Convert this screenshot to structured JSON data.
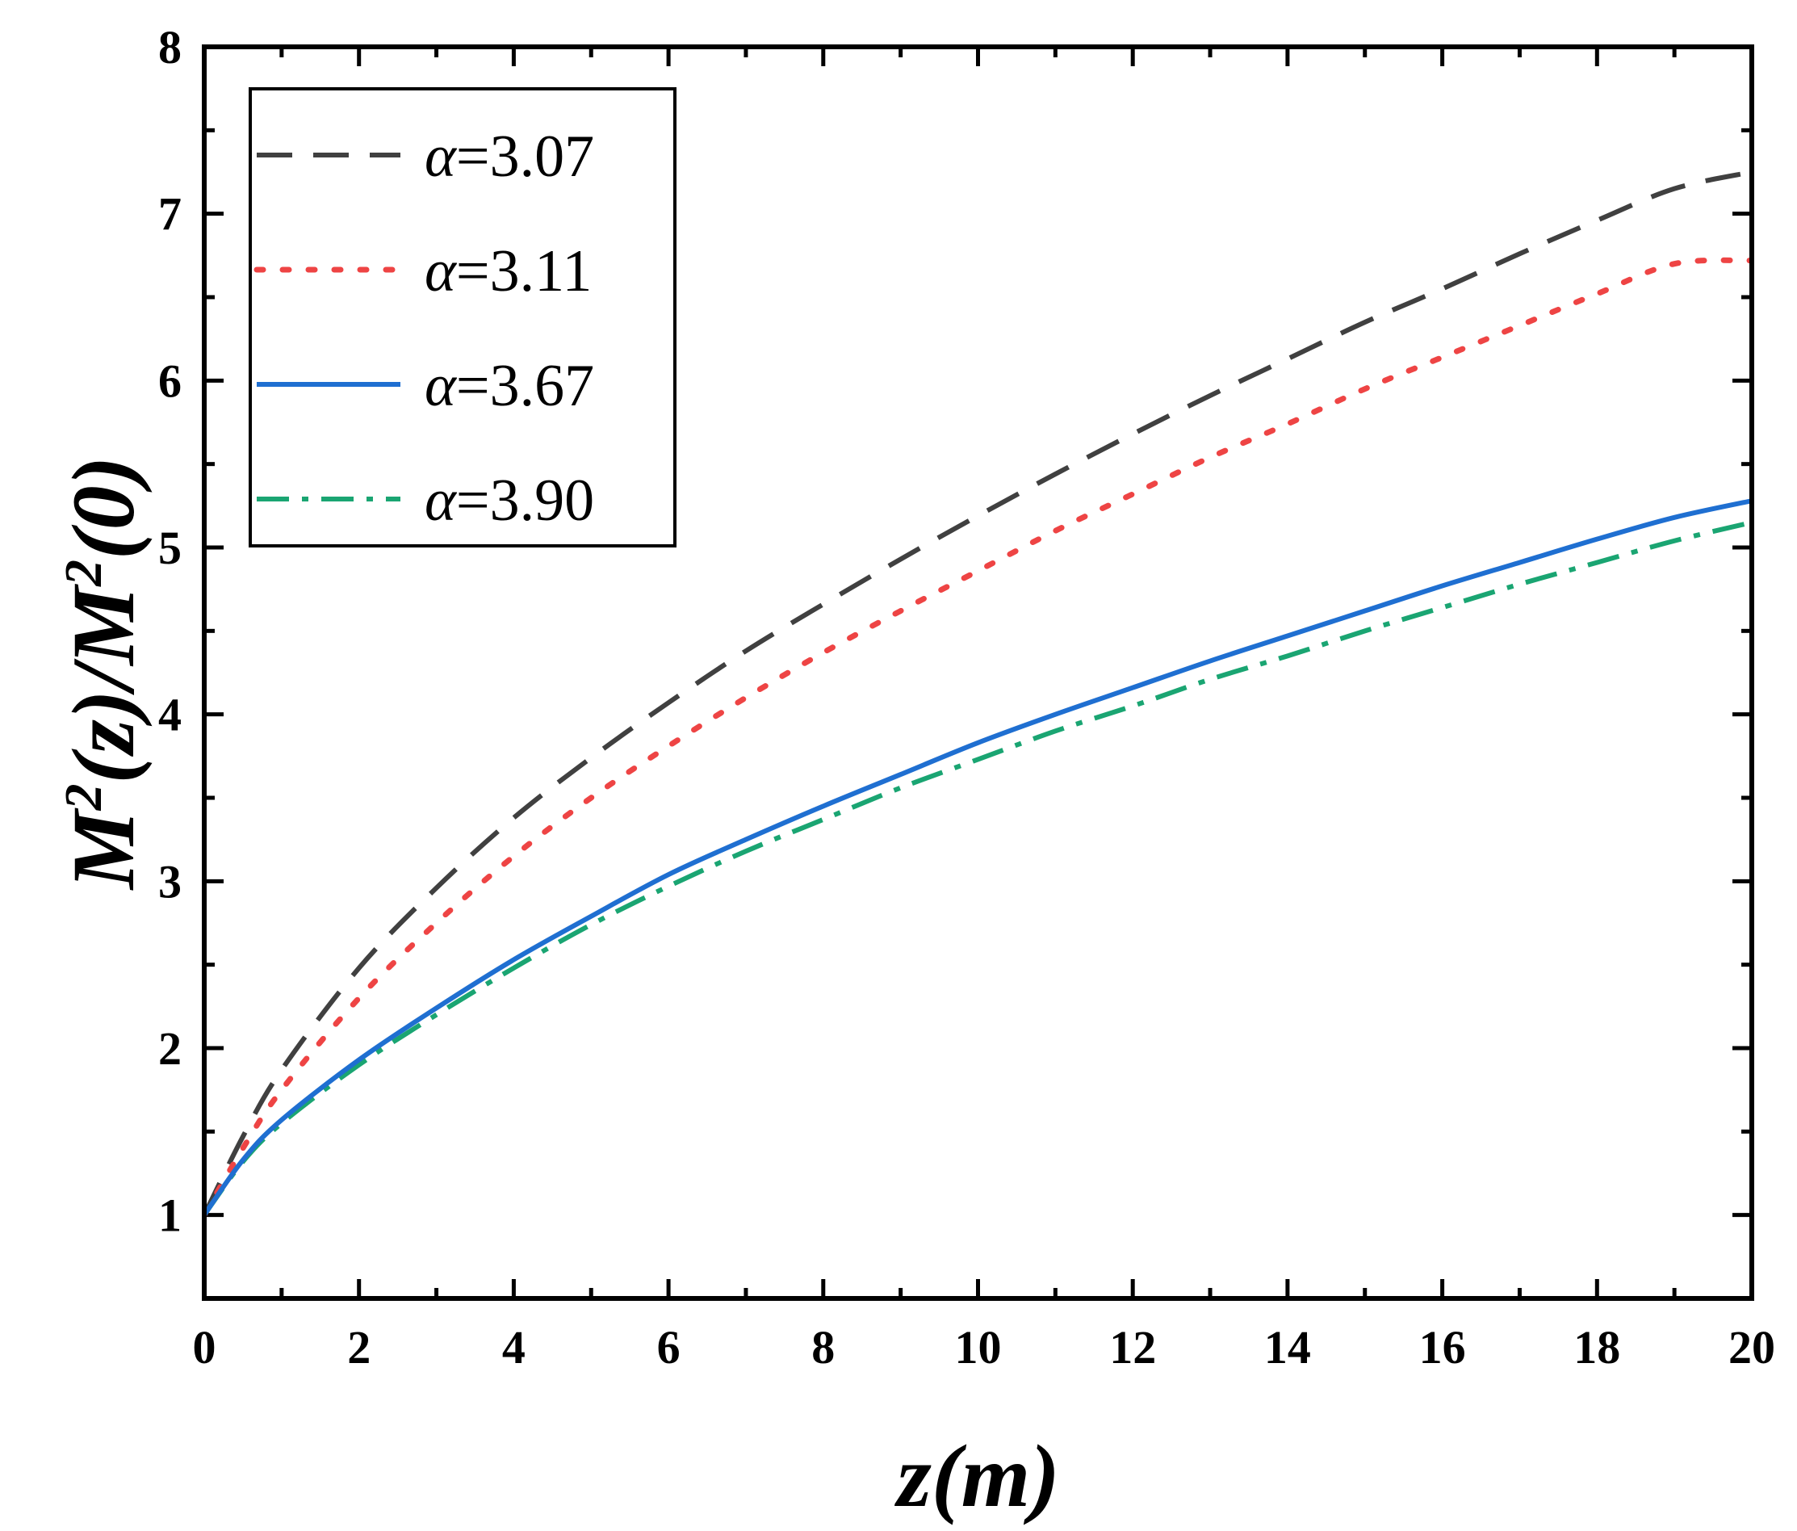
{
  "chart_data": {
    "type": "line",
    "title": "",
    "xlabel": "z(m)",
    "ylabel": "M²(z)/M²(0)",
    "ylabel_parts": {
      "m1": "M",
      "sup1": "2",
      "mid": "(z)/",
      "m2": "M",
      "sup2": "2",
      "end": "(0)"
    },
    "xlim": [
      0,
      20
    ],
    "ylim": [
      0.5,
      8
    ],
    "xticks": [
      0,
      2,
      4,
      6,
      8,
      10,
      12,
      14,
      16,
      18,
      20
    ],
    "yticks": [
      1,
      2,
      3,
      4,
      5,
      6,
      7,
      8
    ],
    "legend_position": "top-left",
    "series": [
      {
        "name": "α=3.07",
        "alpha_symbol": "α",
        "alpha_value": "=3.07",
        "color": "#404040",
        "style": "dashed",
        "x": [
          0,
          0.5,
          1,
          2,
          3,
          4,
          5,
          6,
          7,
          8,
          9,
          10,
          11,
          12,
          13,
          14,
          15,
          16,
          17,
          18,
          19,
          20
        ],
        "y": [
          1.0,
          1.47,
          1.87,
          2.48,
          2.96,
          3.38,
          3.74,
          4.07,
          4.38,
          4.66,
          4.93,
          5.19,
          5.44,
          5.68,
          5.91,
          6.13,
          6.35,
          6.55,
          6.76,
          6.96,
          7.15,
          7.25
        ]
      },
      {
        "name": "α=3.11",
        "alpha_symbol": "α",
        "alpha_value": "=3.11",
        "color": "#ee4444",
        "style": "dotted",
        "x": [
          0,
          0.5,
          1,
          2,
          3,
          4,
          5,
          6,
          7,
          8,
          9,
          10,
          11,
          12,
          13,
          14,
          15,
          16,
          17,
          18,
          19,
          20
        ],
        "y": [
          1.0,
          1.4,
          1.75,
          2.3,
          2.75,
          3.15,
          3.5,
          3.81,
          4.1,
          4.37,
          4.62,
          4.86,
          5.1,
          5.32,
          5.54,
          5.74,
          5.95,
          6.14,
          6.33,
          6.52,
          6.7,
          6.72
        ]
      },
      {
        "name": "α=3.67",
        "alpha_symbol": "α",
        "alpha_value": "=3.67",
        "color": "#1f6fd1",
        "style": "solid",
        "x": [
          0,
          0.5,
          1,
          2,
          3,
          4,
          5,
          6,
          7,
          8,
          9,
          10,
          11,
          12,
          13,
          14,
          15,
          16,
          17,
          18,
          19,
          20
        ],
        "y": [
          1.0,
          1.33,
          1.57,
          1.93,
          2.24,
          2.53,
          2.79,
          3.04,
          3.25,
          3.45,
          3.64,
          3.83,
          4.0,
          4.16,
          4.32,
          4.47,
          4.62,
          4.77,
          4.91,
          5.05,
          5.18,
          5.28
        ]
      },
      {
        "name": "α=3.90",
        "alpha_symbol": "α",
        "alpha_value": "=3.90",
        "color": "#1aa572",
        "style": "dashdot",
        "x": [
          0,
          0.5,
          1,
          2,
          3,
          4,
          5,
          6,
          7,
          8,
          9,
          10,
          11,
          12,
          13,
          14,
          15,
          16,
          17,
          18,
          19,
          20
        ],
        "y": [
          1.0,
          1.32,
          1.55,
          1.9,
          2.2,
          2.48,
          2.74,
          2.97,
          3.18,
          3.37,
          3.56,
          3.73,
          3.9,
          4.05,
          4.21,
          4.35,
          4.5,
          4.64,
          4.78,
          4.91,
          5.04,
          5.15
        ]
      }
    ]
  }
}
